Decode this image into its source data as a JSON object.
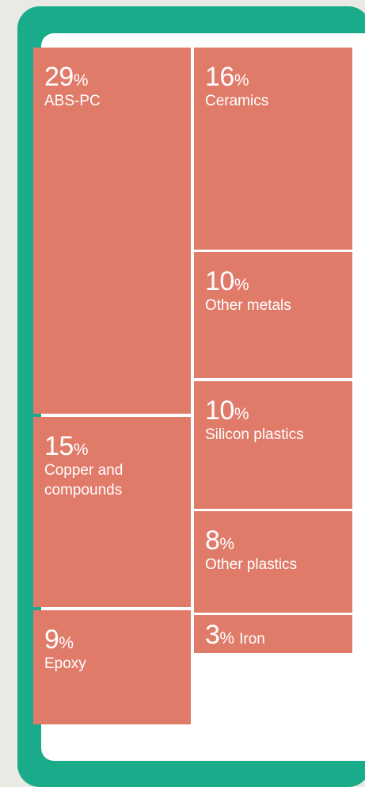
{
  "chart_data": {
    "type": "treemap",
    "unit": "%",
    "items": [
      {
        "label": "ABS-PC",
        "value": 29
      },
      {
        "label": "Ceramics",
        "value": 16
      },
      {
        "label": "Other metals",
        "value": 10
      },
      {
        "label": "Silicon plastics",
        "value": 10
      },
      {
        "label": "Copper and compounds",
        "value": 15
      },
      {
        "label": "Other plastics",
        "value": 8
      },
      {
        "label": "Iron",
        "value": 3
      },
      {
        "label": "Epoxy",
        "value": 9
      }
    ]
  },
  "colors": {
    "tile": "#e07b6a",
    "frame": "#1aab8a",
    "screen": "#ffffff",
    "background": "#ebe9e3"
  }
}
